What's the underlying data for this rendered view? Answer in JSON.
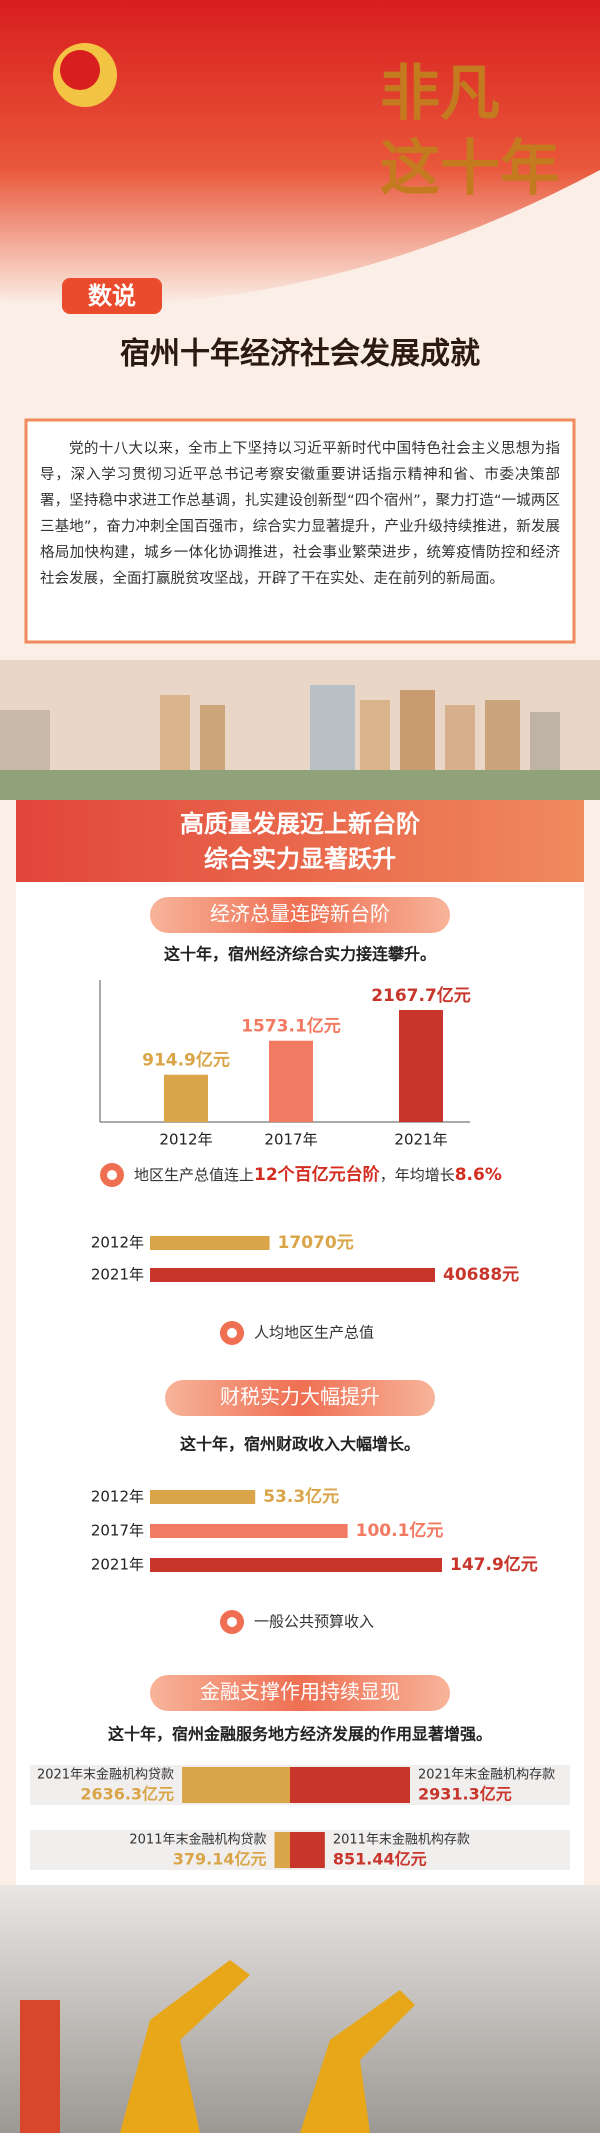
{
  "header": {
    "slogan_lines": [
      "非凡",
      "这十年"
    ],
    "badge": "数说",
    "title": "宿州十年经济社会发展成就"
  },
  "intro": "党的十八大以来，全市上下坚持以习近平新时代中国特色社会主义思想为指导，深入学习贯彻习近平总书记考察安徽重要讲话指示精神和省、市委决策部署，坚持稳中求进工作总基调，扎实建设创新型“四个宿州”，聚力打造“一城两区三基地”，奋力冲刺全国百强市，综合实力显著提升，产业升级持续推进，新发展格局加快构建，城乡一体化协调推进，社会事业繁荣进步，统筹疫情防控和经济社会发展，全面打赢脱贫攻坚战，开辟了干在实处、走在前列的新局面。",
  "section": {
    "title_lines": [
      "高质量发展迈上新台阶",
      "综合实力显著跃升"
    ]
  },
  "panels": [
    {
      "title": "经济总量连跨新台阶",
      "subtitle": "这十年，宿州经济综合实力接连攀升。",
      "note": [
        "地区生产总值连上",
        "12个百亿元台阶",
        "，年均增长",
        "8.6%"
      ],
      "caption": "人均地区生产总值"
    },
    {
      "title": "财税实力大幅提升",
      "subtitle": "这十年，宿州财政收入大幅增长。",
      "caption": "一般公共预算收入"
    },
    {
      "title": "金融支撑作用持续显现",
      "subtitle": "这十年，宿州金融服务地方经济发展的作用显著增强。"
    }
  ],
  "chart_data": [
    {
      "type": "bar",
      "categories": [
        "2012年",
        "2017年",
        "2021年"
      ],
      "values": [
        914.9,
        1573.1,
        2167.7
      ],
      "value_labels": [
        "914.9亿元",
        "1573.1亿元",
        "2167.7亿元"
      ],
      "colors": [
        "#d9a548",
        "#f27a62",
        "#c8352b"
      ]
    },
    {
      "type": "hbar",
      "categories": [
        "2012年",
        "2021年"
      ],
      "values": [
        17070,
        40688
      ],
      "value_labels": [
        "17070元",
        "40688元"
      ],
      "colors": [
        "#d9a548",
        "#c8352b"
      ]
    },
    {
      "type": "hbar",
      "categories": [
        "2012年",
        "2017年",
        "2021年"
      ],
      "values": [
        53.3,
        100.1,
        147.9
      ],
      "value_labels": [
        "53.3亿元",
        "100.1亿元",
        "147.9亿元"
      ],
      "colors": [
        "#d9a548",
        "#f27a62",
        "#c8352b"
      ]
    },
    {
      "type": "diverging",
      "series": [
        {
          "color": "#d9a548",
          "labels": [
            "2021年末金融机构贷款",
            "2011年末金融机构贷款"
          ],
          "values": [
            2636.3,
            379.14
          ],
          "value_labels": [
            "2636.3亿元",
            "379.14亿元"
          ]
        },
        {
          "color": "#c8352b",
          "labels": [
            "2021年末金融机构存款",
            "2011年末金融机构存款"
          ],
          "values": [
            2931.3,
            851.44
          ],
          "value_labels": [
            "2931.3亿元",
            "851.44亿元"
          ]
        }
      ]
    }
  ]
}
